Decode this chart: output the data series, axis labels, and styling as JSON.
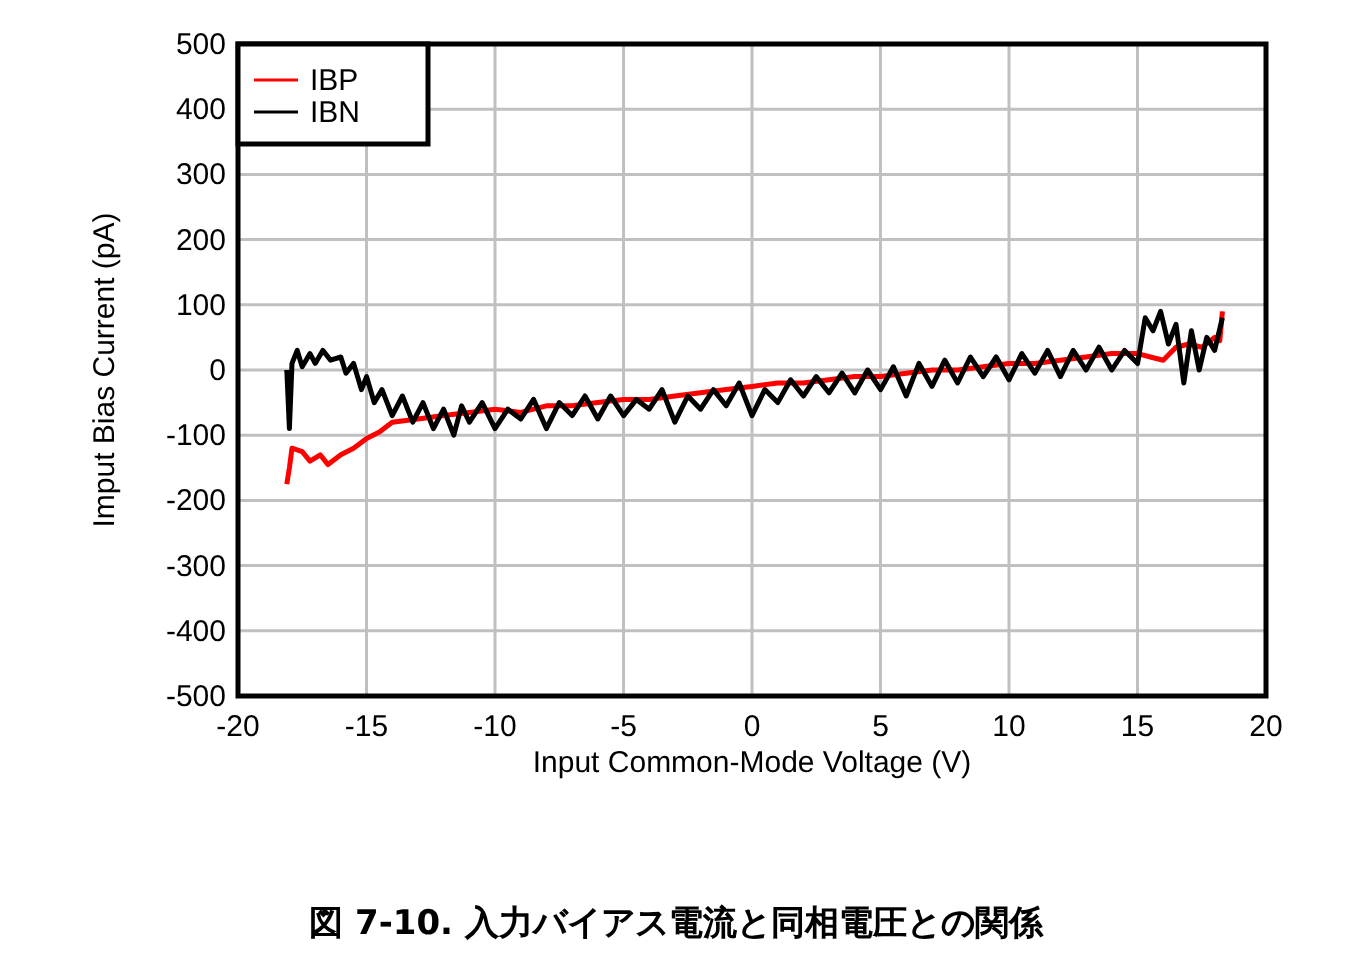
{
  "chart_data": {
    "type": "line",
    "title": "図 7-10. 入力バイアス電流と同相電圧との関係",
    "xlabel": "Input Common-Mode Voltage (V)",
    "ylabel": "Imput Bias Current (pA)",
    "xlim": [
      -20,
      20
    ],
    "ylim": [
      -500,
      500
    ],
    "xticks": [
      -20,
      -15,
      -10,
      -5,
      0,
      5,
      10,
      15,
      20
    ],
    "yticks": [
      -500,
      -400,
      -300,
      -200,
      -100,
      0,
      100,
      200,
      300,
      400,
      500
    ],
    "grid": true,
    "legend": "top left",
    "line_style": "solid",
    "series": [
      {
        "name": "IBP",
        "color": "#ff0000",
        "x": [
          -18.1,
          -18.0,
          -17.9,
          -17.5,
          -17.2,
          -16.8,
          -16.5,
          -16.0,
          -15.5,
          -15.0,
          -14.5,
          -14.0,
          -13.0,
          -12.0,
          -11.0,
          -10.0,
          -9.0,
          -8.0,
          -7.0,
          -6.0,
          -5.0,
          -4.0,
          -3.0,
          -2.0,
          -1.0,
          0.0,
          1.0,
          2.0,
          3.0,
          4.0,
          5.0,
          6.0,
          7.0,
          8.0,
          9.0,
          10.0,
          11.0,
          12.0,
          13.0,
          14.0,
          15.0,
          15.5,
          16.0,
          16.5,
          17.0,
          17.5,
          18.0,
          18.2,
          18.3
        ],
        "values": [
          -175,
          -150,
          -120,
          -125,
          -140,
          -130,
          -145,
          -130,
          -120,
          -105,
          -95,
          -80,
          -75,
          -70,
          -65,
          -60,
          -65,
          -55,
          -55,
          -50,
          -45,
          -45,
          -40,
          -35,
          -30,
          -25,
          -20,
          -20,
          -15,
          -10,
          -10,
          -5,
          0,
          0,
          5,
          10,
          10,
          15,
          20,
          25,
          25,
          20,
          15,
          35,
          40,
          35,
          50,
          45,
          90
        ]
      },
      {
        "name": "IBN",
        "color": "#000000",
        "x": [
          -18.1,
          -18.0,
          -17.9,
          -17.7,
          -17.5,
          -17.2,
          -17.0,
          -16.7,
          -16.4,
          -16.0,
          -15.8,
          -15.5,
          -15.2,
          -15.0,
          -14.7,
          -14.4,
          -14.0,
          -13.6,
          -13.2,
          -12.8,
          -12.4,
          -12.0,
          -11.6,
          -11.3,
          -11.0,
          -10.5,
          -10.0,
          -9.5,
          -9.0,
          -8.5,
          -8.0,
          -7.5,
          -7.0,
          -6.5,
          -6.0,
          -5.5,
          -5.0,
          -4.5,
          -4.0,
          -3.5,
          -3.0,
          -2.5,
          -2.0,
          -1.5,
          -1.0,
          -0.5,
          0.0,
          0.5,
          1.0,
          1.5,
          2.0,
          2.5,
          3.0,
          3.5,
          4.0,
          4.5,
          5.0,
          5.5,
          6.0,
          6.5,
          7.0,
          7.5,
          8.0,
          8.5,
          9.0,
          9.5,
          10.0,
          10.5,
          11.0,
          11.5,
          12.0,
          12.5,
          13.0,
          13.5,
          14.0,
          14.5,
          15.0,
          15.3,
          15.6,
          15.9,
          16.2,
          16.5,
          16.8,
          17.1,
          17.4,
          17.7,
          18.0,
          18.3
        ],
        "values": [
          0,
          -90,
          10,
          30,
          5,
          25,
          10,
          30,
          15,
          20,
          -5,
          10,
          -30,
          -10,
          -50,
          -30,
          -70,
          -40,
          -80,
          -50,
          -90,
          -60,
          -100,
          -55,
          -80,
          -50,
          -90,
          -60,
          -75,
          -45,
          -90,
          -50,
          -70,
          -40,
          -75,
          -40,
          -70,
          -45,
          -60,
          -30,
          -80,
          -40,
          -60,
          -30,
          -55,
          -20,
          -70,
          -30,
          -50,
          -15,
          -40,
          -10,
          -35,
          -5,
          -35,
          0,
          -30,
          5,
          -40,
          10,
          -25,
          15,
          -20,
          20,
          -10,
          20,
          -15,
          25,
          -5,
          30,
          -10,
          30,
          0,
          35,
          0,
          30,
          10,
          80,
          60,
          90,
          40,
          70,
          -20,
          60,
          0,
          50,
          30,
          80
        ]
      }
    ]
  }
}
